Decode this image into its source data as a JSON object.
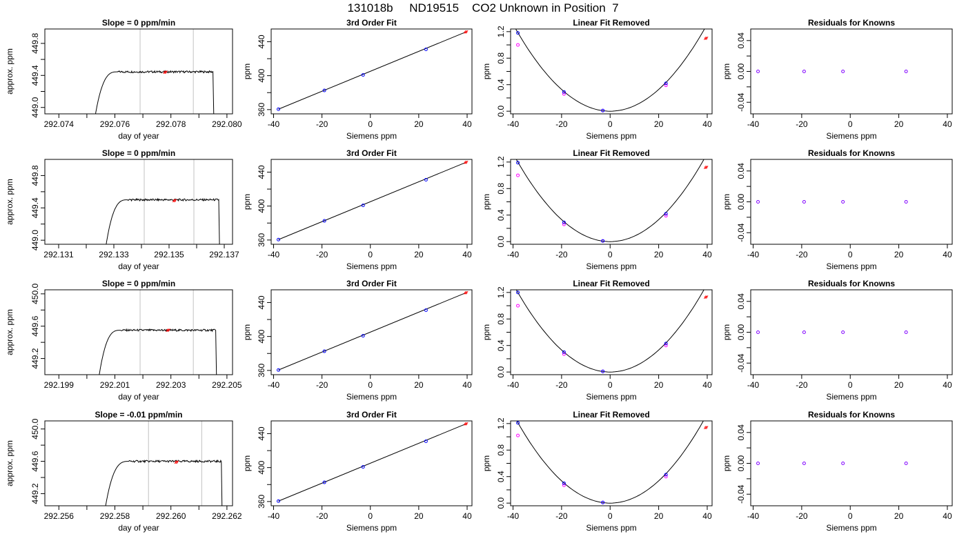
{
  "main_title": "131018b     ND19515    CO2 Unknown in Position  7",
  "chart_data": [
    {
      "type": "line",
      "title": "Slope =  0  ppm/min",
      "xlabel": "day of year",
      "ylabel": "approx. ppm",
      "xlim": [
        292.0735,
        292.0802
      ],
      "ylim": [
        448.92,
        449.98
      ],
      "xticks": [
        292.074,
        292.075,
        292.076,
        292.077,
        292.078,
        292.079,
        292.08
      ],
      "xticklabels": [
        "292.074",
        "",
        "292.076",
        "",
        "292.078",
        "",
        "292.080"
      ],
      "yticks": [
        449.0,
        449.2,
        449.4,
        449.6,
        449.8
      ],
      "yticklabels": [
        "449.0",
        "",
        "449.4",
        "",
        "449.8"
      ],
      "vlines": [
        292.0769,
        292.0788
      ],
      "trace": {
        "start": 292.0753,
        "rise_end": 292.0761,
        "end": 292.0795,
        "low": 448.9,
        "level": 449.445,
        "bottom": 448.9
      },
      "marker": {
        "x": 292.0778,
        "y": 449.44
      }
    },
    {
      "type": "scatter",
      "title": "3rd Order Fit",
      "xlabel": "Siemens ppm",
      "ylabel": "ppm",
      "xlim": [
        -41,
        42
      ],
      "ylim": [
        355,
        455
      ],
      "xticks": [
        -40,
        -20,
        0,
        20,
        40
      ],
      "xticklabels": [
        "-40",
        "-20",
        "0",
        "20",
        "40"
      ],
      "yticks": [
        360,
        380,
        400,
        420,
        440
      ],
      "yticklabels": [
        "360",
        "",
        "400",
        "",
        "440"
      ],
      "fit_line": [
        [
          -38,
          360.5
        ],
        [
          39.5,
          451.5
        ]
      ],
      "known_points": {
        "x": [
          -38,
          -19,
          -3,
          23
        ],
        "y": [
          360.5,
          382.6,
          400.8,
          431.0
        ]
      },
      "unknown_point": {
        "x": 39.5,
        "y": 451.5
      }
    },
    {
      "type": "scatter",
      "title": "Linear Fit Removed",
      "xlabel": "Siemens ppm",
      "ylabel": "ppm",
      "xlim": [
        -41,
        42
      ],
      "ylim": [
        -0.04,
        1.24
      ],
      "xticks": [
        -40,
        -20,
        0,
        20,
        40
      ],
      "xticklabels": [
        "-40",
        "-20",
        "0",
        "20",
        "40"
      ],
      "yticks": [
        0.0,
        0.2,
        0.4,
        0.6,
        0.8,
        1.0,
        1.2
      ],
      "yticklabels": [
        "0.0",
        "",
        "0.4",
        "",
        "0.8",
        "",
        "1.2"
      ],
      "curve": {
        "vertex_x": 0,
        "a": 0.00082
      },
      "known_points": {
        "x": [
          -38,
          -19,
          -3,
          23
        ],
        "y": [
          1.18,
          0.29,
          0.01,
          0.42
        ]
      },
      "secondary_points": {
        "x": [
          -38,
          -19,
          -3,
          23
        ],
        "y": [
          1.0,
          0.26,
          0.01,
          0.39
        ]
      },
      "unknown_point": {
        "x": 39.5,
        "y": 1.1
      }
    },
    {
      "type": "scatter",
      "title": "Residuals for Knowns",
      "xlabel": "Siemens ppm",
      "ylabel": "ppm",
      "xlim": [
        -41,
        42
      ],
      "ylim": [
        -0.055,
        0.055
      ],
      "xticks": [
        -40,
        -20,
        0,
        20,
        40
      ],
      "xticklabels": [
        "-40",
        "-20",
        "0",
        "20",
        "40"
      ],
      "yticks": [
        -0.04,
        0.0,
        0.04
      ],
      "yticklabels": [
        "-0.04",
        "0.00",
        "0.04"
      ],
      "minor_yticks": [
        -0.02,
        0.02
      ],
      "points": {
        "x": [
          -38,
          -19,
          -3,
          23
        ],
        "y": [
          0,
          0,
          0,
          0
        ]
      }
    },
    {
      "type": "line",
      "title": "Slope =  0  ppm/min",
      "xlabel": "day of year",
      "ylabel": "approx. ppm",
      "xlim": [
        292.1305,
        292.1373
      ],
      "ylim": [
        448.95,
        450.0
      ],
      "xticks": [
        292.131,
        292.132,
        292.133,
        292.134,
        292.135,
        292.136,
        292.137
      ],
      "xticklabels": [
        "292.131",
        "",
        "292.133",
        "",
        "292.135",
        "",
        "292.137"
      ],
      "yticks": [
        449.0,
        449.2,
        449.4,
        449.6,
        449.8
      ],
      "yticklabels": [
        "449.0",
        "",
        "449.4",
        "",
        "449.8"
      ],
      "vlines": [
        292.1341,
        292.1359
      ],
      "trace": {
        "start": 292.1327,
        "rise_end": 292.1335,
        "end": 292.1368,
        "low": 448.9,
        "level": 449.5,
        "bottom": 448.9
      },
      "marker": {
        "x": 292.1352,
        "y": 449.49
      }
    },
    {
      "type": "scatter",
      "title": "3rd Order Fit",
      "xlabel": "Siemens ppm",
      "ylabel": "ppm",
      "xlim": [
        -41,
        42
      ],
      "ylim": [
        355,
        455
      ],
      "xticks": [
        -40,
        -20,
        0,
        20,
        40
      ],
      "xticklabels": [
        "-40",
        "-20",
        "0",
        "20",
        "40"
      ],
      "yticks": [
        360,
        380,
        400,
        420,
        440
      ],
      "yticklabels": [
        "360",
        "",
        "400",
        "",
        "440"
      ],
      "fit_line": [
        [
          -38,
          360.5
        ],
        [
          39.5,
          451.5
        ]
      ],
      "known_points": {
        "x": [
          -38,
          -19,
          -3,
          23
        ],
        "y": [
          360.5,
          382.6,
          400.8,
          431.0
        ]
      },
      "unknown_point": {
        "x": 39.5,
        "y": 451.5
      }
    },
    {
      "type": "scatter",
      "title": "Linear Fit Removed",
      "xlabel": "Siemens ppm",
      "ylabel": "ppm",
      "xlim": [
        -41,
        42
      ],
      "ylim": [
        -0.04,
        1.24
      ],
      "xticks": [
        -40,
        -20,
        0,
        20,
        40
      ],
      "xticklabels": [
        "-40",
        "-20",
        "0",
        "20",
        "40"
      ],
      "yticks": [
        0.0,
        0.2,
        0.4,
        0.6,
        0.8,
        1.0,
        1.2
      ],
      "yticklabels": [
        "0.0",
        "",
        "0.4",
        "",
        "0.8",
        "",
        "1.2"
      ],
      "curve": {
        "vertex_x": 0,
        "a": 0.00083
      },
      "known_points": {
        "x": [
          -38,
          -19,
          -3,
          23
        ],
        "y": [
          1.19,
          0.29,
          0.01,
          0.42
        ]
      },
      "secondary_points": {
        "x": [
          -38,
          -19,
          -3,
          23
        ],
        "y": [
          1.0,
          0.26,
          0.01,
          0.39
        ]
      },
      "unknown_point": {
        "x": 39.5,
        "y": 1.12
      }
    },
    {
      "type": "scatter",
      "title": "Residuals for Knowns",
      "xlabel": "Siemens ppm",
      "ylabel": "ppm",
      "xlim": [
        -41,
        42
      ],
      "ylim": [
        -0.055,
        0.055
      ],
      "xticks": [
        -40,
        -20,
        0,
        20,
        40
      ],
      "xticklabels": [
        "-40",
        "-20",
        "0",
        "20",
        "40"
      ],
      "yticks": [
        -0.04,
        0.0,
        0.04
      ],
      "yticklabels": [
        "-0.04",
        "0.00",
        "0.04"
      ],
      "minor_yticks": [
        -0.02,
        0.02
      ],
      "points": {
        "x": [
          -38,
          -19,
          -3,
          23
        ],
        "y": [
          0,
          0,
          0,
          0
        ]
      }
    },
    {
      "type": "line",
      "title": "Slope =  0  ppm/min",
      "xlabel": "day of year",
      "ylabel": "approx. ppm",
      "xlim": [
        292.1985,
        292.2052
      ],
      "ylim": [
        449.0,
        450.05
      ],
      "xticks": [
        292.199,
        292.2,
        292.201,
        292.202,
        292.203,
        292.204,
        292.205
      ],
      "xticklabels": [
        "292.199",
        "",
        "292.201",
        "",
        "292.203",
        "",
        "292.205"
      ],
      "yticks": [
        449.2,
        449.4,
        449.6,
        449.8,
        450.0
      ],
      "yticklabels": [
        "449.2",
        "",
        "449.6",
        "",
        "450.0"
      ],
      "vlines": [
        292.2019,
        292.2038
      ],
      "trace": {
        "start": 292.2004,
        "rise_end": 292.2012,
        "end": 292.2046,
        "low": 448.9,
        "level": 449.55,
        "bottom": 448.9
      },
      "marker": {
        "x": 292.2029,
        "y": 449.55
      }
    },
    {
      "type": "scatter",
      "title": "3rd Order Fit",
      "xlabel": "Siemens ppm",
      "ylabel": "ppm",
      "xlim": [
        -41,
        42
      ],
      "ylim": [
        355,
        455
      ],
      "xticks": [
        -40,
        -20,
        0,
        20,
        40
      ],
      "xticklabels": [
        "-40",
        "-20",
        "0",
        "20",
        "40"
      ],
      "yticks": [
        360,
        380,
        400,
        420,
        440
      ],
      "yticklabels": [
        "360",
        "",
        "400",
        "",
        "440"
      ],
      "fit_line": [
        [
          -38,
          360.5
        ],
        [
          39.5,
          451.5
        ]
      ],
      "known_points": {
        "x": [
          -38,
          -19,
          -3,
          23
        ],
        "y": [
          360.5,
          382.6,
          400.8,
          431.0
        ]
      },
      "unknown_point": {
        "x": 39.5,
        "y": 451.5
      }
    },
    {
      "type": "scatter",
      "title": "Linear Fit Removed",
      "xlabel": "Siemens ppm",
      "ylabel": "ppm",
      "xlim": [
        -41,
        42
      ],
      "ylim": [
        -0.04,
        1.24
      ],
      "xticks": [
        -40,
        -20,
        0,
        20,
        40
      ],
      "xticklabels": [
        "-40",
        "-20",
        "0",
        "20",
        "40"
      ],
      "yticks": [
        0.0,
        0.2,
        0.4,
        0.6,
        0.8,
        1.0,
        1.2
      ],
      "yticklabels": [
        "0.0",
        "",
        "0.4",
        "",
        "0.8",
        "",
        "1.2"
      ],
      "curve": {
        "vertex_x": 0,
        "a": 0.00083
      },
      "known_points": {
        "x": [
          -38,
          -19,
          -3,
          23
        ],
        "y": [
          1.2,
          0.3,
          0.01,
          0.43
        ]
      },
      "secondary_points": {
        "x": [
          -38,
          -19,
          -3,
          23
        ],
        "y": [
          1.0,
          0.27,
          0.01,
          0.4
        ]
      },
      "unknown_point": {
        "x": 39.5,
        "y": 1.13
      }
    },
    {
      "type": "scatter",
      "title": "Residuals for Knowns",
      "xlabel": "Siemens ppm",
      "ylabel": "ppm",
      "xlim": [
        -41,
        42
      ],
      "ylim": [
        -0.055,
        0.055
      ],
      "xticks": [
        -40,
        -20,
        0,
        20,
        40
      ],
      "xticklabels": [
        "-40",
        "-20",
        "0",
        "20",
        "40"
      ],
      "yticks": [
        -0.04,
        0.0,
        0.04
      ],
      "yticklabels": [
        "-0.04",
        "0.00",
        "0.04"
      ],
      "minor_yticks": [
        -0.02,
        0.02
      ],
      "points": {
        "x": [
          -38,
          -19,
          -3,
          23
        ],
        "y": [
          0,
          0,
          0,
          0
        ]
      }
    },
    {
      "type": "line",
      "title": "Slope =  -0.01  ppm/min",
      "xlabel": "day of year",
      "ylabel": "approx. ppm",
      "xlim": [
        292.2555,
        292.2622
      ],
      "ylim": [
        449.05,
        450.1
      ],
      "xticks": [
        292.256,
        292.257,
        292.258,
        292.259,
        292.26,
        292.261,
        292.262
      ],
      "xticklabels": [
        "292.256",
        "",
        "292.258",
        "",
        "292.260",
        "",
        "292.262"
      ],
      "yticks": [
        449.2,
        449.4,
        449.6,
        449.8,
        450.0
      ],
      "yticklabels": [
        "449.2",
        "",
        "449.6",
        "",
        "450.0"
      ],
      "vlines": [
        292.2592,
        292.2611
      ],
      "trace": {
        "start": 292.2576,
        "rise_end": 292.2585,
        "end": 292.2618,
        "low": 448.9,
        "level": 449.6,
        "bottom": 448.9
      },
      "marker": {
        "x": 292.2602,
        "y": 449.59
      }
    },
    {
      "type": "scatter",
      "title": "3rd Order Fit",
      "xlabel": "Siemens ppm",
      "ylabel": "ppm",
      "xlim": [
        -41,
        42
      ],
      "ylim": [
        355,
        455
      ],
      "xticks": [
        -40,
        -20,
        0,
        20,
        40
      ],
      "xticklabels": [
        "-40",
        "-20",
        "0",
        "20",
        "40"
      ],
      "yticks": [
        360,
        380,
        400,
        420,
        440
      ],
      "yticklabels": [
        "360",
        "",
        "400",
        "",
        "440"
      ],
      "fit_line": [
        [
          -38,
          360.5
        ],
        [
          39.5,
          451.5
        ]
      ],
      "known_points": {
        "x": [
          -38,
          -19,
          -3,
          23
        ],
        "y": [
          360.5,
          382.6,
          400.8,
          431.0
        ]
      },
      "unknown_point": {
        "x": 39.5,
        "y": 451.5
      }
    },
    {
      "type": "scatter",
      "title": "Linear Fit Removed",
      "xlabel": "Siemens ppm",
      "ylabel": "ppm",
      "xlim": [
        -41,
        42
      ],
      "ylim": [
        -0.04,
        1.24
      ],
      "xticks": [
        -40,
        -20,
        0,
        20,
        40
      ],
      "xticklabels": [
        "-40",
        "-20",
        "0",
        "20",
        "40"
      ],
      "yticks": [
        0.0,
        0.2,
        0.4,
        0.6,
        0.8,
        1.0,
        1.2
      ],
      "yticklabels": [
        "0.0",
        "",
        "0.4",
        "",
        "0.8",
        "",
        "1.2"
      ],
      "curve": {
        "vertex_x": 0,
        "a": 0.00084
      },
      "known_points": {
        "x": [
          -38,
          -19,
          -3,
          23
        ],
        "y": [
          1.21,
          0.3,
          0.01,
          0.43
        ]
      },
      "secondary_points": {
        "x": [
          -38,
          -19,
          -3,
          23
        ],
        "y": [
          1.02,
          0.27,
          0.01,
          0.4
        ]
      },
      "unknown_point": {
        "x": 39.5,
        "y": 1.14
      }
    },
    {
      "type": "scatter",
      "title": "Residuals for Knowns",
      "xlabel": "Siemens ppm",
      "ylabel": "ppm",
      "xlim": [
        -41,
        42
      ],
      "ylim": [
        -0.055,
        0.055
      ],
      "xticks": [
        -40,
        -20,
        0,
        20,
        40
      ],
      "xticklabels": [
        "-40",
        "-20",
        "0",
        "20",
        "40"
      ],
      "yticks": [
        -0.04,
        0.0,
        0.04
      ],
      "yticklabels": [
        "-0.04",
        "0.00",
        "0.04"
      ],
      "minor_yticks": [
        -0.02,
        0.02
      ],
      "points": {
        "x": [
          -38,
          -19,
          -3,
          23
        ],
        "y": [
          0,
          0,
          0,
          0
        ]
      }
    }
  ],
  "colors": {
    "axis": "#000000",
    "trace": "#000000",
    "vline": "#c0c0c0",
    "known_point": "#0000ff",
    "secondary_point": "#ff00ff",
    "residual_point": "#8000ff",
    "unknown_point": "#ff0000"
  }
}
